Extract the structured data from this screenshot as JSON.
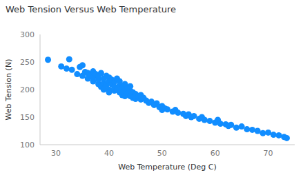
{
  "chart_data": {
    "type": "scatter",
    "title": "Web Tension Versus Web Temperature",
    "x_label": "Web Temperature (Deg C)",
    "y_label": "Web Tension (N)",
    "x": [
      28.5,
      31,
      32.5,
      32,
      33,
      34,
      34.5,
      35,
      35,
      35.5,
      36,
      36,
      36.5,
      37,
      37,
      37,
      37.5,
      38,
      38,
      38,
      38.5,
      38.5,
      39,
      39,
      39,
      39.5,
      39.5,
      40,
      40,
      40,
      40,
      40.5,
      40.5,
      41,
      41,
      41,
      41.5,
      41.5,
      42,
      42,
      42,
      42.5,
      42.5,
      43,
      43,
      43,
      43.5,
      43.5,
      44,
      44,
      44,
      44.5,
      44.5,
      45,
      45,
      45.5,
      46,
      46,
      46.5,
      47,
      47.5,
      48,
      48.5,
      49,
      49.5,
      50,
      50,
      50.5,
      51,
      52,
      52.5,
      53,
      54,
      54.5,
      55,
      55.5,
      56,
      57,
      57.5,
      58,
      59,
      60,
      60.5,
      61,
      62,
      62.5,
      63,
      64,
      65,
      66,
      67,
      68,
      69,
      70,
      71,
      72,
      73,
      73.5
    ],
    "values": [
      254,
      242,
      255,
      238,
      236,
      228,
      241,
      244,
      225,
      232,
      230,
      220,
      226,
      233,
      215,
      222,
      228,
      210,
      218,
      225,
      230,
      205,
      212,
      220,
      200,
      225,
      208,
      215,
      200,
      222,
      195,
      210,
      218,
      205,
      214,
      198,
      220,
      200,
      208,
      195,
      215,
      203,
      190,
      210,
      198,
      188,
      202,
      193,
      198,
      188,
      206,
      195,
      185,
      192,
      183,
      188,
      182,
      190,
      185,
      180,
      176,
      178,
      172,
      175,
      168,
      170,
      163,
      166,
      164,
      160,
      163,
      158,
      156,
      152,
      155,
      150,
      152,
      147,
      150,
      145,
      143,
      140,
      145,
      138,
      137,
      134,
      136,
      131,
      133,
      128,
      127,
      125,
      121,
      122,
      118,
      117,
      114,
      112
    ],
    "color": "#118DFF",
    "marker": "circle",
    "xlim": [
      27,
      75
    ],
    "xticks": [
      30,
      40,
      50,
      60,
      70
    ],
    "ylim": [
      100,
      300
    ],
    "yticks": [
      100,
      150,
      200,
      250,
      300
    ],
    "grid": false
  }
}
